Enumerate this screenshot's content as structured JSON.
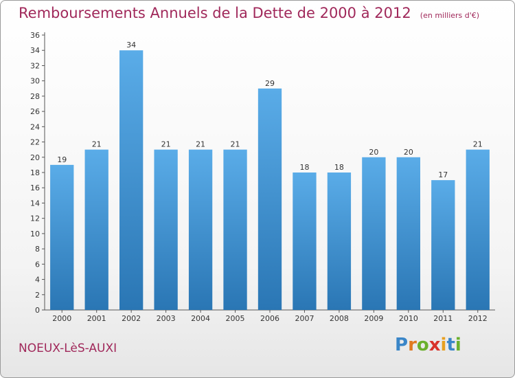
{
  "chart_data": {
    "type": "bar",
    "title": "Remboursements Annuels de la Dette de 2000 à 2012",
    "subtitle": "(en milliers d'€)",
    "categories": [
      "2000",
      "2001",
      "2002",
      "2003",
      "2004",
      "2005",
      "2006",
      "2007",
      "2008",
      "2009",
      "2010",
      "2011",
      "2012"
    ],
    "values": [
      19,
      21,
      34,
      21,
      21,
      21,
      29,
      18,
      18,
      20,
      20,
      17,
      21
    ],
    "xlabel": "",
    "ylabel": "",
    "ylim": [
      0,
      36
    ],
    "yticks": [
      0,
      2,
      4,
      6,
      8,
      10,
      12,
      14,
      16,
      18,
      20,
      22,
      24,
      26,
      28,
      30,
      32,
      34,
      36
    ],
    "grid": false,
    "bar_color_top": "#5aace8",
    "bar_color_bottom": "#2a76b4"
  },
  "footer": {
    "town": "NOEUX-LèS-AUXI",
    "logo_letters": [
      {
        "ch": "P",
        "color": "#3a86c8"
      },
      {
        "ch": "r",
        "color": "#e07a20"
      },
      {
        "ch": "o",
        "color": "#6ab02c"
      },
      {
        "ch": "x",
        "color": "#d8322a"
      },
      {
        "ch": "i",
        "color": "#e8a020"
      },
      {
        "ch": "t",
        "color": "#3a86c8"
      },
      {
        "ch": "i",
        "color": "#6ab02c"
      }
    ]
  }
}
